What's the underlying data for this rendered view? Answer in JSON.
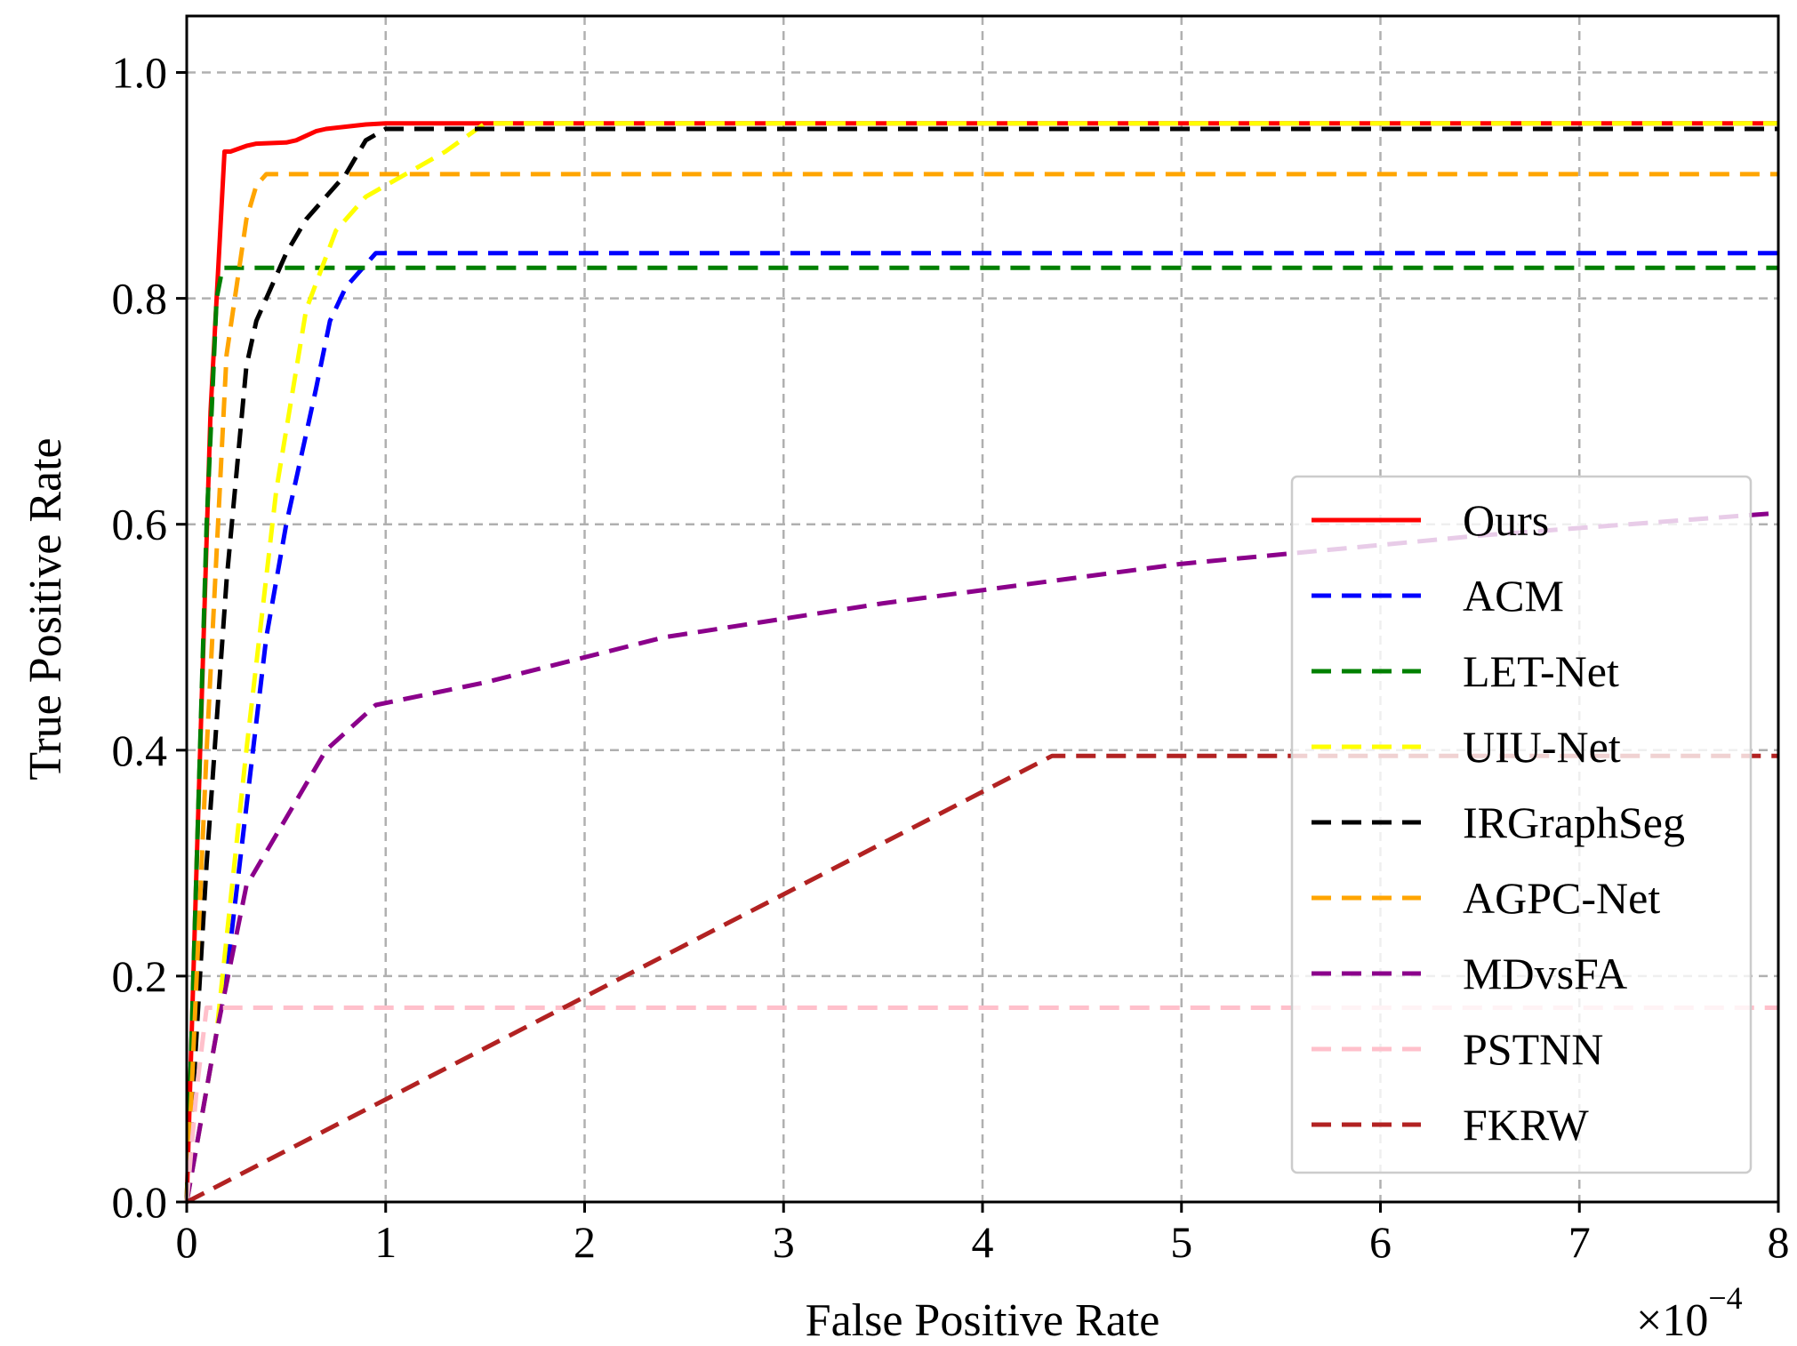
{
  "chart_data": {
    "type": "line",
    "title": "",
    "xlabel": "False Positive Rate",
    "ylabel": "True Positive Rate",
    "x_scale_label": "×10",
    "x_scale_exponent": "−4",
    "xlim": [
      0,
      8
    ],
    "ylim": [
      0,
      1.05
    ],
    "xticks": [
      0,
      1,
      2,
      3,
      4,
      5,
      6,
      7,
      8
    ],
    "xtick_labels": [
      "0",
      "1",
      "2",
      "3",
      "4",
      "5",
      "6",
      "7",
      "8"
    ],
    "yticks": [
      0.0,
      0.2,
      0.4,
      0.6,
      0.8,
      1.0
    ],
    "ytick_labels": [
      "0.0",
      "0.2",
      "0.4",
      "0.6",
      "0.8",
      "1.0"
    ],
    "grid": true,
    "legend_position": "center-right",
    "series": [
      {
        "name": "Ours",
        "color": "#ff0000",
        "style": "solid",
        "x": [
          0,
          0.05,
          0.12,
          0.19,
          0.22,
          0.3,
          0.35,
          0.5,
          0.55,
          0.6,
          0.65,
          0.7,
          0.8,
          0.9,
          1.0,
          8.0
        ],
        "y": [
          0,
          0.3,
          0.7,
          0.93,
          0.93,
          0.935,
          0.937,
          0.938,
          0.94,
          0.944,
          0.948,
          0.95,
          0.952,
          0.954,
          0.955,
          0.955
        ]
      },
      {
        "name": "ACM",
        "color": "#0000ff",
        "style": "dashed",
        "x": [
          0,
          0.2,
          0.3,
          0.4,
          0.5,
          0.6,
          0.65,
          0.72,
          0.8,
          0.9,
          0.95,
          8.0
        ],
        "y": [
          0,
          0.2,
          0.35,
          0.5,
          0.6,
          0.68,
          0.72,
          0.78,
          0.81,
          0.83,
          0.84,
          0.84
        ]
      },
      {
        "name": "LET-Net",
        "color": "#008000",
        "style": "dashed",
        "x": [
          0,
          0.05,
          0.1,
          0.15,
          0.18,
          8.0
        ],
        "y": [
          0,
          0.3,
          0.6,
          0.8,
          0.827,
          0.827
        ]
      },
      {
        "name": "UIU-Net",
        "color": "#ffff00",
        "style": "dashed",
        "x": [
          0,
          0.15,
          0.3,
          0.45,
          0.6,
          0.75,
          0.9,
          1.1,
          1.3,
          1.5,
          8.0
        ],
        "y": [
          0,
          0.15,
          0.4,
          0.63,
          0.79,
          0.86,
          0.89,
          0.91,
          0.93,
          0.955,
          0.955
        ]
      },
      {
        "name": "IRGraphSeg",
        "color": "#000000",
        "style": "dashed",
        "x": [
          0,
          0.1,
          0.2,
          0.3,
          0.35,
          0.4,
          0.5,
          0.6,
          0.7,
          0.8,
          0.9,
          1.0,
          8.0
        ],
        "y": [
          0,
          0.3,
          0.55,
          0.74,
          0.78,
          0.8,
          0.84,
          0.87,
          0.89,
          0.91,
          0.94,
          0.95,
          0.95
        ]
      },
      {
        "name": "AGPC-Net",
        "color": "#ffa500",
        "style": "dashed",
        "x": [
          0,
          0.1,
          0.2,
          0.3,
          0.35,
          0.4,
          8.0
        ],
        "y": [
          0,
          0.4,
          0.75,
          0.87,
          0.9,
          0.91,
          0.91
        ]
      },
      {
        "name": "MDvsFA",
        "color": "#8b008b",
        "style": "dashed",
        "x": [
          0,
          0.15,
          0.3,
          0.5,
          0.7,
          0.95,
          1.5,
          2.4,
          3.5,
          5.0,
          6.5,
          8.0
        ],
        "y": [
          0,
          0.15,
          0.28,
          0.34,
          0.4,
          0.44,
          0.46,
          0.5,
          0.53,
          0.565,
          0.59,
          0.61
        ]
      },
      {
        "name": "PSTNN",
        "color": "#ffc0cb",
        "style": "dashed",
        "x": [
          0,
          0.05,
          0.1,
          8.0
        ],
        "y": [
          0,
          0.1,
          0.172,
          0.172
        ]
      },
      {
        "name": "FKRW",
        "color": "#b22222",
        "style": "dashed",
        "x": [
          0,
          4.35,
          8.0
        ],
        "y": [
          0,
          0.395,
          0.395
        ]
      }
    ]
  }
}
